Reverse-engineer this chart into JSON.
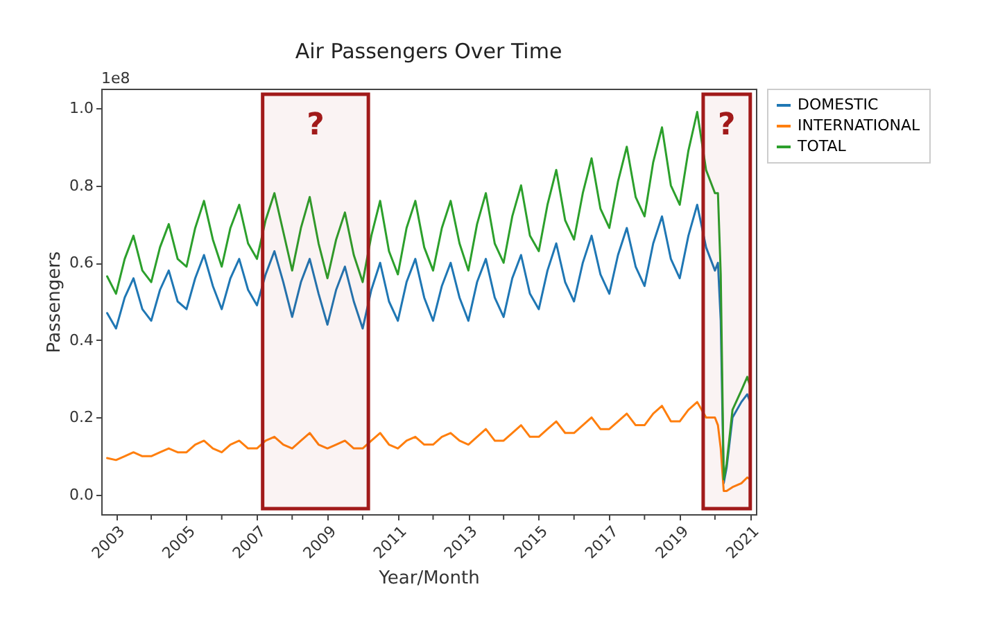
{
  "chart_data": {
    "type": "line",
    "title": "Air Passengers Over Time",
    "xlabel": "Year/Month",
    "ylabel": "Passengers",
    "annotations": [
      "1e8"
    ],
    "x": [
      "2002-10",
      "2003-01",
      "2003-04",
      "2003-07",
      "2003-10",
      "2004-01",
      "2004-04",
      "2004-07",
      "2004-10",
      "2005-01",
      "2005-04",
      "2005-07",
      "2005-10",
      "2006-01",
      "2006-04",
      "2006-07",
      "2006-10",
      "2007-01",
      "2007-04",
      "2007-07",
      "2007-10",
      "2008-01",
      "2008-04",
      "2008-07",
      "2008-10",
      "2009-01",
      "2009-04",
      "2009-07",
      "2009-10",
      "2010-01",
      "2010-04",
      "2010-07",
      "2010-10",
      "2011-01",
      "2011-04",
      "2011-07",
      "2011-10",
      "2012-01",
      "2012-04",
      "2012-07",
      "2012-10",
      "2013-01",
      "2013-04",
      "2013-07",
      "2013-10",
      "2014-01",
      "2014-04",
      "2014-07",
      "2014-10",
      "2015-01",
      "2015-04",
      "2015-07",
      "2015-10",
      "2016-01",
      "2016-04",
      "2016-07",
      "2016-10",
      "2017-01",
      "2017-04",
      "2017-07",
      "2017-10",
      "2018-01",
      "2018-04",
      "2018-07",
      "2018-10",
      "2019-01",
      "2019-04",
      "2019-07",
      "2019-10",
      "2020-01",
      "2020-02",
      "2020-03",
      "2020-04",
      "2020-05",
      "2020-07",
      "2020-10",
      "2020-12",
      "2021-01"
    ],
    "series": [
      {
        "name": "DOMESTIC",
        "color": "#1f77b4",
        "values": [
          0.47,
          0.43,
          0.51,
          0.56,
          0.48,
          0.45,
          0.53,
          0.58,
          0.5,
          0.48,
          0.56,
          0.62,
          0.54,
          0.48,
          0.56,
          0.61,
          0.53,
          0.49,
          0.57,
          0.63,
          0.55,
          0.46,
          0.55,
          0.61,
          0.52,
          0.44,
          0.53,
          0.59,
          0.5,
          0.43,
          0.53,
          0.6,
          0.5,
          0.45,
          0.55,
          0.61,
          0.51,
          0.45,
          0.54,
          0.6,
          0.51,
          0.45,
          0.55,
          0.61,
          0.51,
          0.46,
          0.56,
          0.62,
          0.52,
          0.48,
          0.58,
          0.65,
          0.55,
          0.5,
          0.6,
          0.67,
          0.57,
          0.52,
          0.62,
          0.69,
          0.59,
          0.54,
          0.65,
          0.72,
          0.61,
          0.56,
          0.67,
          0.75,
          0.64,
          0.58,
          0.6,
          0.45,
          0.03,
          0.07,
          0.2,
          0.24,
          0.26,
          0.24
        ]
      },
      {
        "name": "INTERNATIONAL",
        "color": "#ff7f0e",
        "values": [
          0.095,
          0.09,
          0.1,
          0.11,
          0.1,
          0.1,
          0.11,
          0.12,
          0.11,
          0.11,
          0.13,
          0.14,
          0.12,
          0.11,
          0.13,
          0.14,
          0.12,
          0.12,
          0.14,
          0.15,
          0.13,
          0.12,
          0.14,
          0.16,
          0.13,
          0.12,
          0.13,
          0.14,
          0.12,
          0.12,
          0.14,
          0.16,
          0.13,
          0.12,
          0.14,
          0.15,
          0.13,
          0.13,
          0.15,
          0.16,
          0.14,
          0.13,
          0.15,
          0.17,
          0.14,
          0.14,
          0.16,
          0.18,
          0.15,
          0.15,
          0.17,
          0.19,
          0.16,
          0.16,
          0.18,
          0.2,
          0.17,
          0.17,
          0.19,
          0.21,
          0.18,
          0.18,
          0.21,
          0.23,
          0.19,
          0.19,
          0.22,
          0.24,
          0.2,
          0.2,
          0.18,
          0.12,
          0.01,
          0.01,
          0.02,
          0.03,
          0.045,
          0.04
        ]
      },
      {
        "name": "TOTAL",
        "color": "#2ca02c",
        "values": [
          0.565,
          0.52,
          0.61,
          0.67,
          0.58,
          0.55,
          0.64,
          0.7,
          0.61,
          0.59,
          0.69,
          0.76,
          0.66,
          0.59,
          0.69,
          0.75,
          0.65,
          0.61,
          0.71,
          0.78,
          0.68,
          0.58,
          0.69,
          0.77,
          0.65,
          0.56,
          0.66,
          0.73,
          0.62,
          0.55,
          0.67,
          0.76,
          0.63,
          0.57,
          0.69,
          0.76,
          0.64,
          0.58,
          0.69,
          0.76,
          0.65,
          0.58,
          0.7,
          0.78,
          0.65,
          0.6,
          0.72,
          0.8,
          0.67,
          0.63,
          0.75,
          0.84,
          0.71,
          0.66,
          0.78,
          0.87,
          0.74,
          0.69,
          0.81,
          0.9,
          0.77,
          0.72,
          0.86,
          0.95,
          0.8,
          0.75,
          0.89,
          0.99,
          0.84,
          0.78,
          0.78,
          0.57,
          0.04,
          0.08,
          0.22,
          0.27,
          0.305,
          0.28
        ]
      }
    ],
    "xlim": [
      "2002-08",
      "2021-03"
    ],
    "xticks": [
      {
        "value": "2003",
        "label": "2003"
      },
      {
        "value": "2004",
        "label": null
      },
      {
        "value": "2005",
        "label": "2005"
      },
      {
        "value": "2006",
        "label": null
      },
      {
        "value": "2007",
        "label": "2007"
      },
      {
        "value": "2008",
        "label": null
      },
      {
        "value": "2009",
        "label": "2009"
      },
      {
        "value": "2010",
        "label": null
      },
      {
        "value": "2011",
        "label": "2011"
      },
      {
        "value": "2012",
        "label": null
      },
      {
        "value": "2013",
        "label": "2013"
      },
      {
        "value": "2014",
        "label": null
      },
      {
        "value": "2015",
        "label": "2015"
      },
      {
        "value": "2016",
        "label": null
      },
      {
        "value": "2017",
        "label": "2017"
      },
      {
        "value": "2018",
        "label": null
      },
      {
        "value": "2019",
        "label": "2019"
      },
      {
        "value": "2020",
        "label": null
      },
      {
        "value": "2021",
        "label": "2021"
      }
    ],
    "ylim": [
      -0.05,
      1.05
    ],
    "yticks": [
      {
        "value": 0,
        "label": "0.0"
      },
      {
        "value": 0.2,
        "label": "0.2"
      },
      {
        "value": 0.4,
        "label": "0.4"
      },
      {
        "value": 0.6,
        "label": "0.6"
      },
      {
        "value": 0.8,
        "label": "0.8"
      },
      {
        "value": 1,
        "label": "1.0"
      }
    ],
    "bands": [
      {
        "axis": "x",
        "from": "2007-03",
        "to": "2010-03",
        "label": "?",
        "color": "#a11a1a"
      },
      {
        "axis": "x",
        "from": "2019-09",
        "to": "2021-01",
        "label": "?",
        "color": "#a11a1a"
      }
    ],
    "legend": "right",
    "grid": false,
    "marker": "none",
    "line_style": "solid"
  }
}
